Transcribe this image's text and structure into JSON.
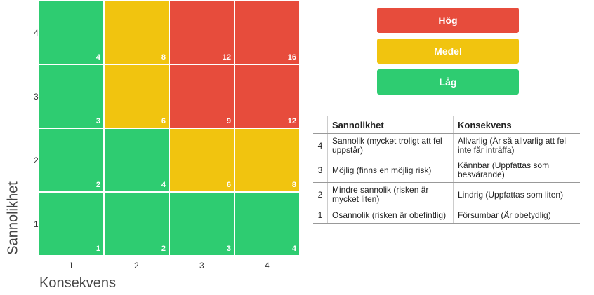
{
  "chart_data": {
    "type": "heatmap",
    "xlabel": "Konsekvens",
    "ylabel": "Sannolikhet",
    "x_ticks": [
      "1",
      "2",
      "3",
      "4"
    ],
    "y_ticks": [
      "4",
      "3",
      "2",
      "1"
    ],
    "rows": [
      {
        "y": "4",
        "cells": [
          {
            "value": 4,
            "level": "low"
          },
          {
            "value": 8,
            "level": "medium"
          },
          {
            "value": 12,
            "level": "high"
          },
          {
            "value": 16,
            "level": "high"
          }
        ]
      },
      {
        "y": "3",
        "cells": [
          {
            "value": 3,
            "level": "low"
          },
          {
            "value": 6,
            "level": "medium"
          },
          {
            "value": 9,
            "level": "high"
          },
          {
            "value": 12,
            "level": "high"
          }
        ]
      },
      {
        "y": "2",
        "cells": [
          {
            "value": 2,
            "level": "low"
          },
          {
            "value": 4,
            "level": "low"
          },
          {
            "value": 6,
            "level": "medium"
          },
          {
            "value": 8,
            "level": "medium"
          }
        ]
      },
      {
        "y": "1",
        "cells": [
          {
            "value": 1,
            "level": "low"
          },
          {
            "value": 2,
            "level": "low"
          },
          {
            "value": 3,
            "level": "low"
          },
          {
            "value": 4,
            "level": "low"
          }
        ]
      }
    ],
    "colors": {
      "high": "#e74c3c",
      "medium": "#f1c40f",
      "low": "#2ecc71"
    }
  },
  "legend": [
    {
      "label": "Hög",
      "level": "high"
    },
    {
      "label": "Medel",
      "level": "medium"
    },
    {
      "label": "Låg",
      "level": "low"
    }
  ],
  "table": {
    "headers": [
      "",
      "Sannolikhet",
      "Konsekvens"
    ],
    "rows": [
      {
        "num": "4",
        "sannolikhet": "Sannolik (mycket troligt att fel uppstår)",
        "konsekvens": "Allvarlig (Är så allvarlig att fel inte får inträffa)"
      },
      {
        "num": "3",
        "sannolikhet": "Möjlig (finns en möjlig risk)",
        "konsekvens": "Kännbar (Uppfattas som besvärande)"
      },
      {
        "num": "2",
        "sannolikhet": "Mindre sannolik (risken är mycket liten)",
        "konsekvens": "Lindrig (Uppfattas som liten)"
      },
      {
        "num": "1",
        "sannolikhet": "Osannolik (risken är obefintlig)",
        "konsekvens": "Försumbar (Är obetydlig)"
      }
    ]
  }
}
